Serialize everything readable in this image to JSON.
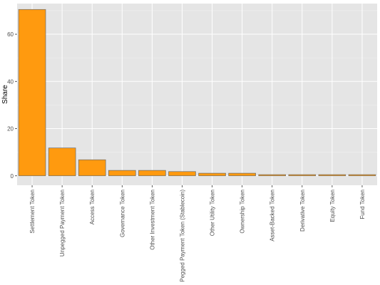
{
  "chart_data": {
    "type": "bar",
    "title": "",
    "xlabel": "",
    "ylabel": "Share",
    "categories": [
      "Settlement Token",
      "Unpegged Payment Token",
      "Access Token",
      "Governance Token",
      "Other Investment Token",
      "Pegged Payment Token (Stablecoin)",
      "Other Utility Token",
      "Ownership Token",
      "Asset-Backed Token",
      "Derivative Token",
      "Equity Token",
      "Fund Token"
    ],
    "values": [
      70.5,
      11.8,
      6.8,
      2.3,
      2.3,
      1.8,
      1.1,
      1.1,
      0.5,
      0.5,
      0.5,
      0.5
    ],
    "ylim": [
      -4,
      73
    ],
    "yticks": [
      0,
      20,
      40,
      60
    ],
    "grid": true,
    "colors": {
      "bar_fill": "#FF9A0F",
      "bar_stroke": "#6b6b6b",
      "panel": "#E5E5E5",
      "grid_major": "#FFFFFF",
      "grid_minor": "#F2F2F2"
    }
  }
}
